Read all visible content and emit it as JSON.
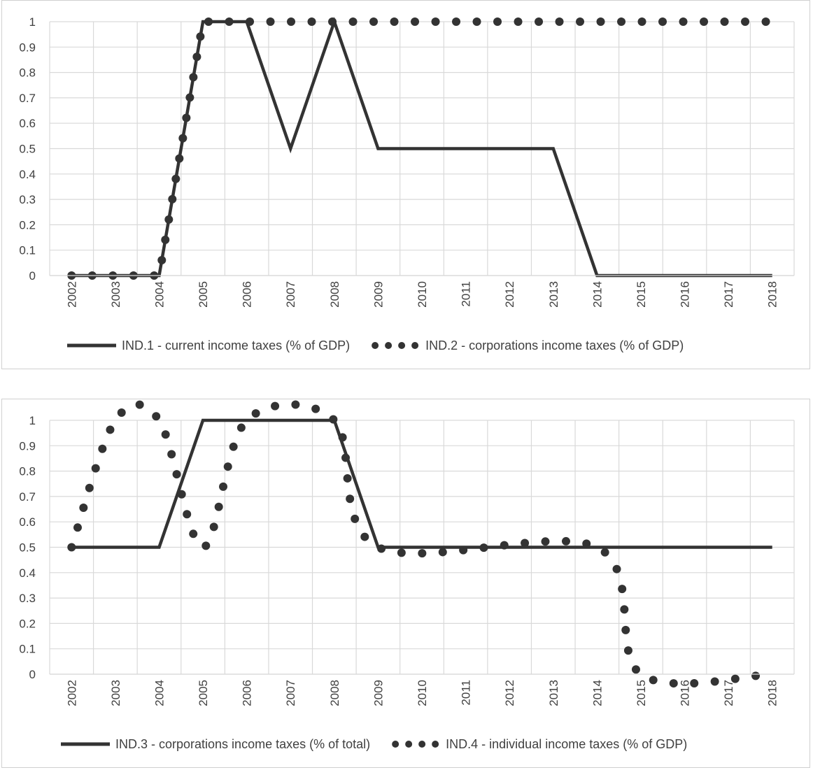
{
  "chart_data": [
    {
      "type": "line",
      "title": "",
      "xlabel": "",
      "ylabel": "",
      "ylim": [
        0,
        1
      ],
      "yticks": [
        "0",
        "0.1",
        "0.2",
        "0.3",
        "0.4",
        "0.5",
        "0.6",
        "0.7",
        "0.8",
        "0.9",
        "1"
      ],
      "categories": [
        "2002",
        "2003",
        "2004",
        "2005",
        "2006",
        "2007",
        "2008",
        "2009",
        "2010",
        "2011",
        "2012",
        "2013",
        "2014",
        "2015",
        "2016",
        "2017",
        "2018"
      ],
      "grid": true,
      "legend": "bottom",
      "series": [
        {
          "name": "IND.1 - current income taxes (% of GDP)",
          "style": "solid",
          "color": "#333333",
          "x": [
            2002,
            2004,
            2005,
            2006,
            2007,
            2008,
            2009,
            2013,
            2014,
            2018
          ],
          "y": [
            0,
            0,
            1,
            1,
            0.5,
            1,
            0.5,
            0.5,
            0,
            0
          ]
        },
        {
          "name": "IND.2 - corporations income taxes (% of GDP)",
          "style": "dotted",
          "color": "#333333",
          "x": [
            2002,
            2004,
            2005,
            2018
          ],
          "y": [
            0,
            0,
            1,
            1
          ]
        }
      ]
    },
    {
      "type": "line",
      "title": "",
      "xlabel": "",
      "ylabel": "",
      "ylim": [
        0,
        1
      ],
      "yticks": [
        "0",
        "0.1",
        "0.2",
        "0.3",
        "0.4",
        "0.5",
        "0.6",
        "0.7",
        "0.8",
        "0.9",
        "1"
      ],
      "categories": [
        "2002",
        "2003",
        "2004",
        "2005",
        "2006",
        "2007",
        "2008",
        "2009",
        "2010",
        "2011",
        "2012",
        "2013",
        "2014",
        "2015",
        "2016",
        "2017",
        "2018"
      ],
      "grid": true,
      "legend": "bottom",
      "series": [
        {
          "name": "IND.3 - corporations income taxes (% of total)",
          "style": "solid",
          "color": "#333333",
          "x": [
            2002,
            2004,
            2005,
            2008,
            2009,
            2018
          ],
          "y": [
            0.5,
            0.5,
            1,
            1,
            0.5,
            0.5
          ]
        },
        {
          "name": "IND.4 - individual income taxes (% of GDP)",
          "style": "dotted",
          "color": "#333333",
          "x": [
            2002,
            2003,
            2004,
            2005,
            2006,
            2008,
            2009,
            2014,
            2015,
            2018
          ],
          "y": [
            0.5,
            1,
            1,
            0.5,
            1,
            1,
            0.5,
            0.5,
            0,
            0
          ],
          "curved": true
        }
      ]
    }
  ]
}
